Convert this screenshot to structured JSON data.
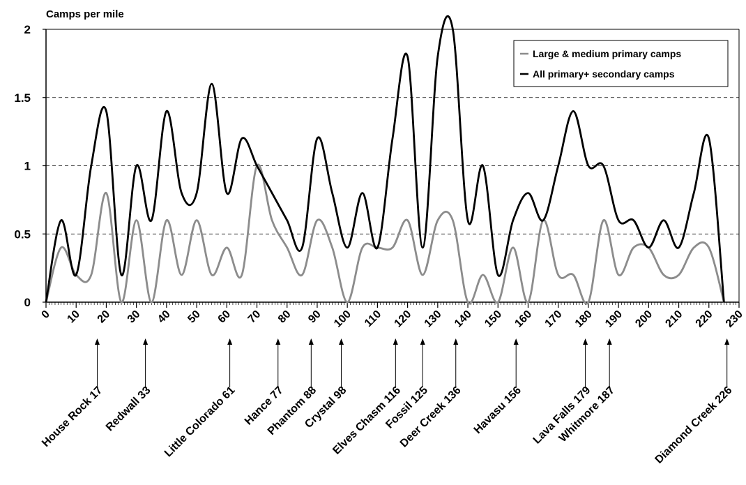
{
  "chart_data": {
    "type": "line",
    "title": "",
    "ylabel": "Camps per mile",
    "xlabel": "",
    "xlim": [
      0,
      230
    ],
    "ylim": [
      0,
      2
    ],
    "x_ticks": [
      0,
      10,
      20,
      30,
      40,
      50,
      60,
      70,
      80,
      90,
      100,
      110,
      120,
      130,
      140,
      150,
      160,
      170,
      180,
      190,
      200,
      210,
      220,
      230
    ],
    "y_ticks": [
      0,
      0.5,
      1,
      1.5,
      2
    ],
    "y_tick_labels": [
      "0",
      "0.5",
      "1",
      "1.5",
      "2"
    ],
    "grid": "horizontal dashed",
    "legend_position": "top-right",
    "series": [
      {
        "name": "Large & medium primary camps",
        "color": "#8c8c8c",
        "x": [
          0,
          5,
          10,
          15,
          20,
          25,
          30,
          35,
          40,
          45,
          50,
          55,
          60,
          65,
          70,
          75,
          80,
          85,
          90,
          95,
          100,
          105,
          110,
          115,
          120,
          125,
          130,
          135,
          140,
          145,
          150,
          155,
          160,
          165,
          170,
          175,
          180,
          185,
          190,
          195,
          200,
          205,
          210,
          215,
          220,
          225
        ],
        "values": [
          0,
          0.4,
          0.2,
          0.2,
          0.8,
          0,
          0.6,
          0,
          0.6,
          0.2,
          0.6,
          0.2,
          0.4,
          0.2,
          1.0,
          0.6,
          0.4,
          0.2,
          0.6,
          0.4,
          0,
          0.4,
          0.4,
          0.4,
          0.6,
          0.2,
          0.6,
          0.6,
          0,
          0.2,
          0,
          0.4,
          0,
          0.6,
          0.2,
          0.2,
          0,
          0.6,
          0.2,
          0.4,
          0.4,
          0.2,
          0.2,
          0.4,
          0.4,
          0
        ]
      },
      {
        "name": "All primary+ secondary camps",
        "color": "#000000",
        "x": [
          0,
          5,
          10,
          15,
          20,
          25,
          30,
          35,
          40,
          45,
          50,
          55,
          60,
          65,
          70,
          75,
          80,
          85,
          90,
          95,
          100,
          105,
          110,
          115,
          120,
          125,
          130,
          135,
          140,
          145,
          150,
          155,
          160,
          165,
          170,
          175,
          180,
          185,
          190,
          195,
          200,
          205,
          210,
          215,
          220,
          225
        ],
        "values": [
          0,
          0.6,
          0.2,
          1.0,
          1.4,
          0.2,
          1.0,
          0.6,
          1.4,
          0.8,
          0.8,
          1.6,
          0.8,
          1.2,
          1.0,
          0.8,
          0.6,
          0.4,
          1.2,
          0.8,
          0.4,
          0.8,
          0.4,
          1.2,
          1.8,
          0.4,
          1.8,
          2.0,
          0.6,
          1.0,
          0.2,
          0.6,
          0.8,
          0.6,
          1.0,
          1.4,
          1.0,
          1.0,
          0.6,
          0.6,
          0.4,
          0.6,
          0.4,
          0.8,
          1.2,
          0
        ]
      }
    ],
    "annotations": [
      {
        "x": 17,
        "label": "House Rock 17"
      },
      {
        "x": 33,
        "label": "Redwall  33"
      },
      {
        "x": 61,
        "label": "Little Colorado  61"
      },
      {
        "x": 77,
        "label": "Hance 77"
      },
      {
        "x": 88,
        "label": "Phantom 88"
      },
      {
        "x": 98,
        "label": "Crystal 98"
      },
      {
        "x": 116,
        "label": "Elves Chasm 116"
      },
      {
        "x": 125,
        "label": "Fossil 125"
      },
      {
        "x": 136,
        "label": "Deer Creek 136"
      },
      {
        "x": 156,
        "label": "Havasu 156"
      },
      {
        "x": 179,
        "label": "Lava Falls 179"
      },
      {
        "x": 187,
        "label": "Whitmore 187"
      },
      {
        "x": 226,
        "label": "Diamond Creek 226"
      }
    ]
  }
}
